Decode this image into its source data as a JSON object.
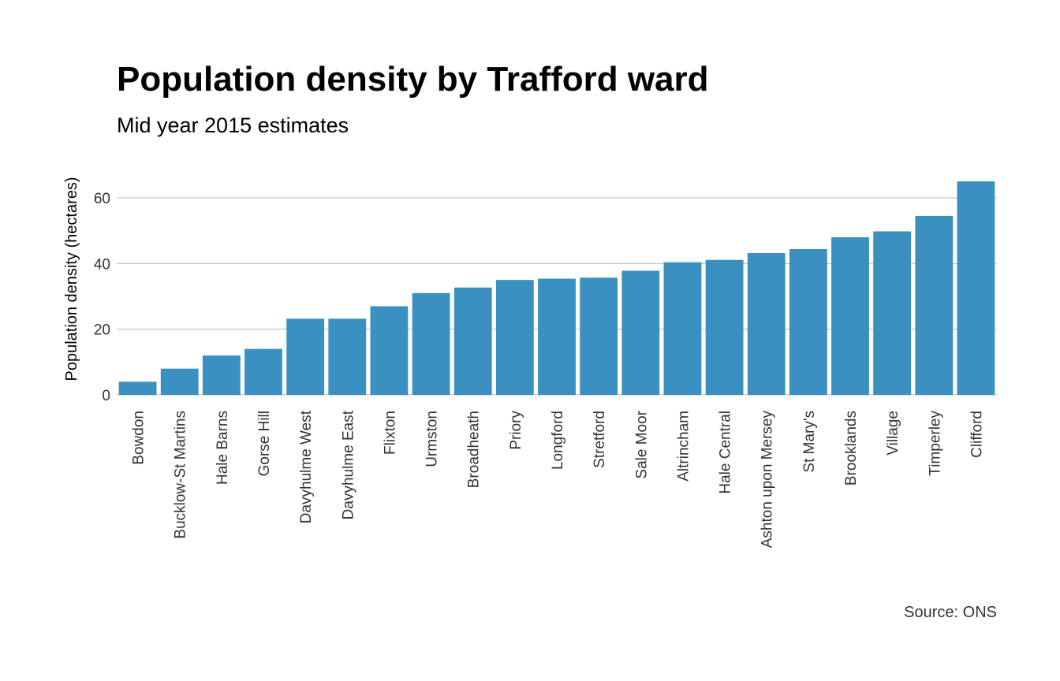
{
  "chart_data": {
    "type": "bar",
    "title": "Population density by Trafford ward",
    "subtitle": "Mid year 2015 estimates",
    "ylabel": "Population density (hectares)",
    "xlabel": "",
    "caption": "Source: ONS",
    "categories": [
      "Bowdon",
      "Bucklow-St Martins",
      "Hale Barns",
      "Gorse Hill",
      "Davyhulme West",
      "Davyhulme East",
      "Flixton",
      "Urmston",
      "Broadheath",
      "Priory",
      "Longford",
      "Stretford",
      "Sale Moor",
      "Altrincham",
      "Hale Central",
      "Ashton upon Mersey",
      "St Mary's",
      "Brooklands",
      "Village",
      "Timperley",
      "Clifford"
    ],
    "values": [
      4,
      8,
      12,
      14,
      23.2,
      23.2,
      27,
      31,
      32.7,
      35,
      35.4,
      35.7,
      37.8,
      40.4,
      41.1,
      43.2,
      44.4,
      48,
      49.8,
      54.5,
      65
    ],
    "ylim": [
      0,
      70
    ],
    "yticks": [
      0,
      20,
      40,
      60
    ],
    "grid": true,
    "legend": "none",
    "bar_color": "#3a91c1"
  }
}
